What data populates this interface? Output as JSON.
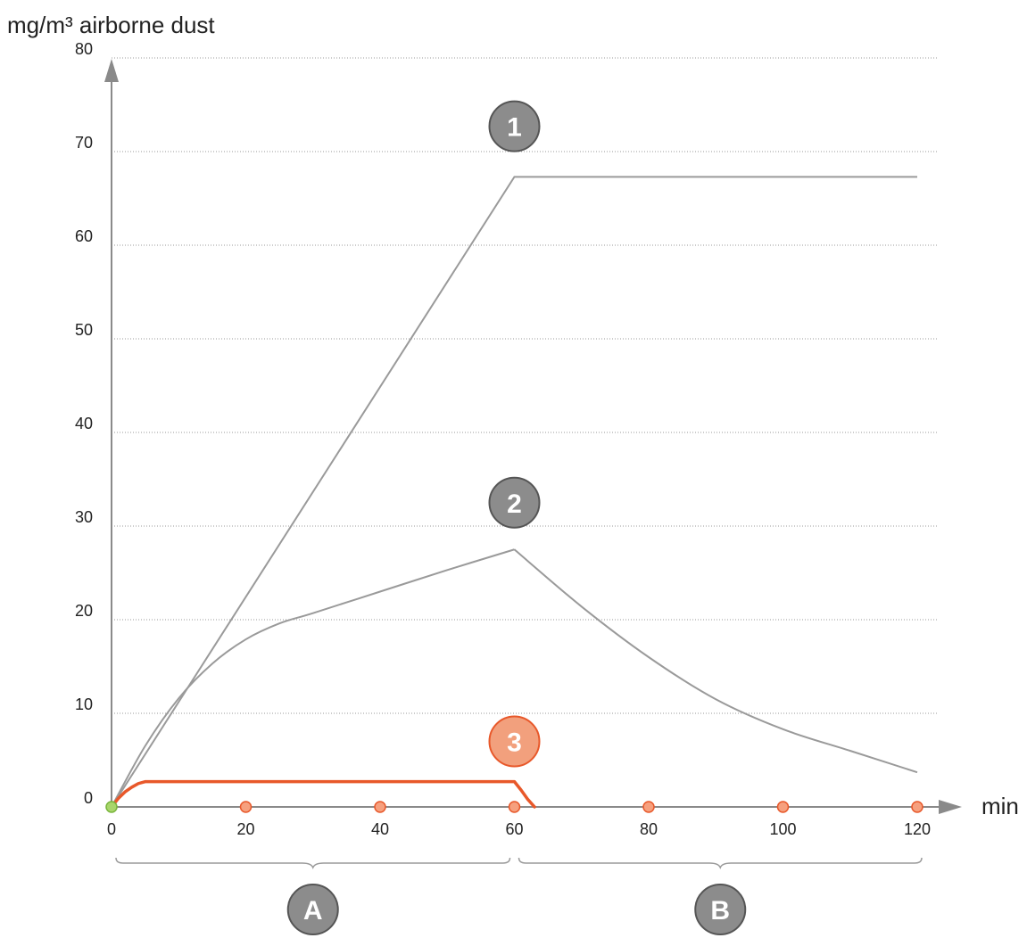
{
  "colors": {
    "gray_curve": "#9a9a9a",
    "orange_curve": "#e8582a",
    "badge_gray": "#8c8c8c",
    "badge_orange": "#f2a07d",
    "marker_orange": "#f6a07e",
    "marker_green": "#a8d66b",
    "axis": "#8a8a8a",
    "grid": "#9a9a9a"
  },
  "chart_data": {
    "type": "line",
    "ylabel": "mg/m³ airborne dust",
    "xlabel": "min",
    "xlim": [
      0,
      120
    ],
    "ylim": [
      0,
      80
    ],
    "x_ticks": [
      0,
      20,
      40,
      60,
      80,
      100,
      120
    ],
    "y_ticks": [
      0,
      10,
      20,
      30,
      40,
      50,
      60,
      70,
      80
    ],
    "grid": "horizontal dotted",
    "series": [
      {
        "badge": "1",
        "color": "gray",
        "x": [
          0,
          60,
          120
        ],
        "y": [
          0,
          67.3,
          67.3
        ]
      },
      {
        "badge": "2",
        "color": "gray",
        "x": [
          0,
          5,
          10,
          15,
          20,
          25,
          30,
          40,
          50,
          60,
          70,
          80,
          90,
          100,
          110,
          120
        ],
        "y": [
          0,
          6.5,
          11.6,
          15.3,
          17.9,
          19.6,
          20.7,
          23.0,
          25.3,
          27.5,
          21.4,
          16.0,
          11.5,
          8.3,
          6.0,
          3.7
        ]
      },
      {
        "badge": "3",
        "color": "orange",
        "x": [
          0,
          1,
          2,
          3,
          4,
          5,
          60,
          61,
          62,
          63
        ],
        "y": [
          0,
          0.9,
          1.6,
          2.1,
          2.5,
          2.7,
          2.7,
          1.8,
          0.8,
          0
        ]
      }
    ],
    "markers": [
      {
        "x": 0,
        "color": "green"
      },
      {
        "x": 20,
        "color": "orange"
      },
      {
        "x": 40,
        "color": "orange"
      },
      {
        "x": 60,
        "color": "orange"
      },
      {
        "x": 80,
        "color": "orange"
      },
      {
        "x": 100,
        "color": "orange"
      },
      {
        "x": 120,
        "color": "orange"
      }
    ],
    "badges": [
      {
        "label": "1",
        "x": 60,
        "y": 72.7,
        "color": "gray"
      },
      {
        "label": "2",
        "x": 60,
        "y": 32.5,
        "color": "gray"
      },
      {
        "label": "3",
        "x": 60,
        "y": 7.0,
        "color": "orange"
      }
    ],
    "phases": [
      {
        "label": "A",
        "from": 0,
        "to": 60
      },
      {
        "label": "B",
        "from": 60,
        "to": 120
      }
    ]
  }
}
